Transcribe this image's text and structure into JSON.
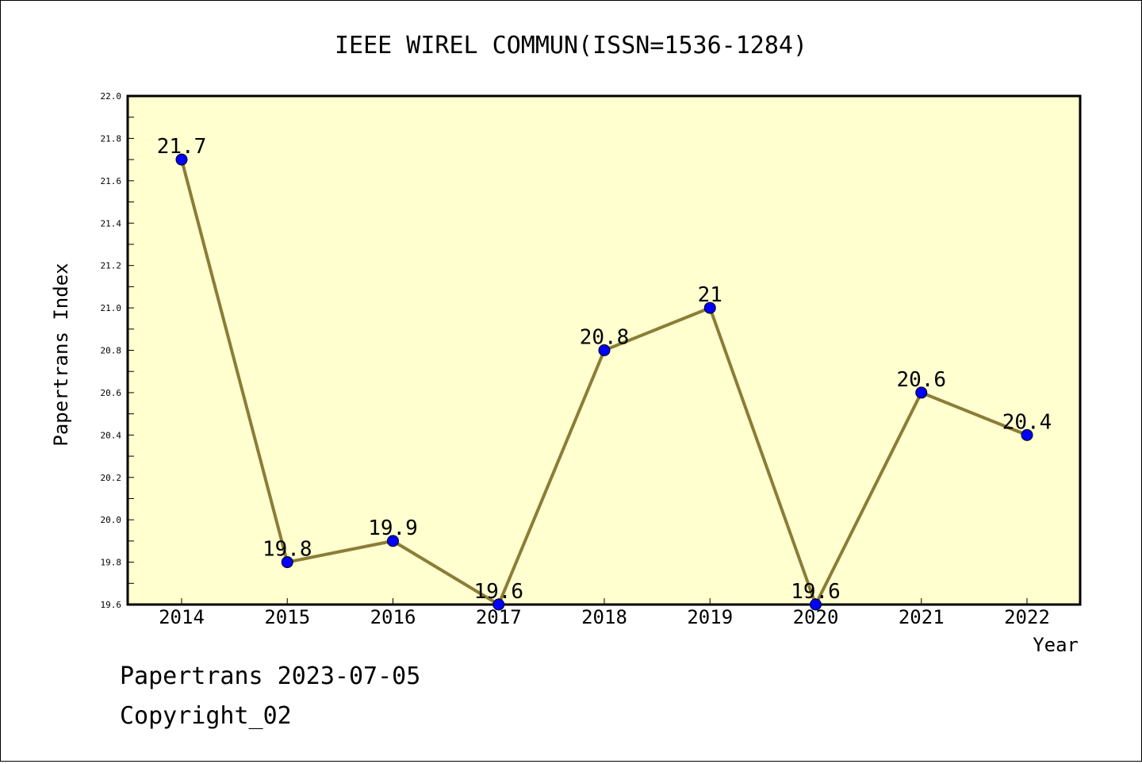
{
  "chart_data": {
    "type": "line",
    "title": "IEEE WIREL COMMUN(ISSN=1536-1284)",
    "xlabel": "Year",
    "ylabel": "Papertrans Index",
    "categories": [
      "2014",
      "2015",
      "2016",
      "2017",
      "2018",
      "2019",
      "2020",
      "2021",
      "2022"
    ],
    "values": [
      21.7,
      19.8,
      19.9,
      19.6,
      20.8,
      21.0,
      19.6,
      20.6,
      20.4
    ],
    "point_labels": [
      "21.7",
      "19.8",
      "19.9",
      "19.6",
      "20.8",
      "21",
      "19.6",
      "20.6",
      "20.4"
    ],
    "ylim": [
      19.6,
      22.0
    ],
    "yticks": [
      "19.6",
      "19.8",
      "20.0",
      "20.2",
      "20.4",
      "20.6",
      "20.8",
      "21.0",
      "21.2",
      "21.4",
      "21.6",
      "21.8",
      "22.0"
    ],
    "grid": false,
    "colors": {
      "plot_background": "#ffffd0",
      "line": "#8b7d37",
      "marker": "#0000ff"
    }
  },
  "footer": {
    "date_text": "Papertrans 2023-07-05",
    "copyright_text": "Copyright_02"
  }
}
